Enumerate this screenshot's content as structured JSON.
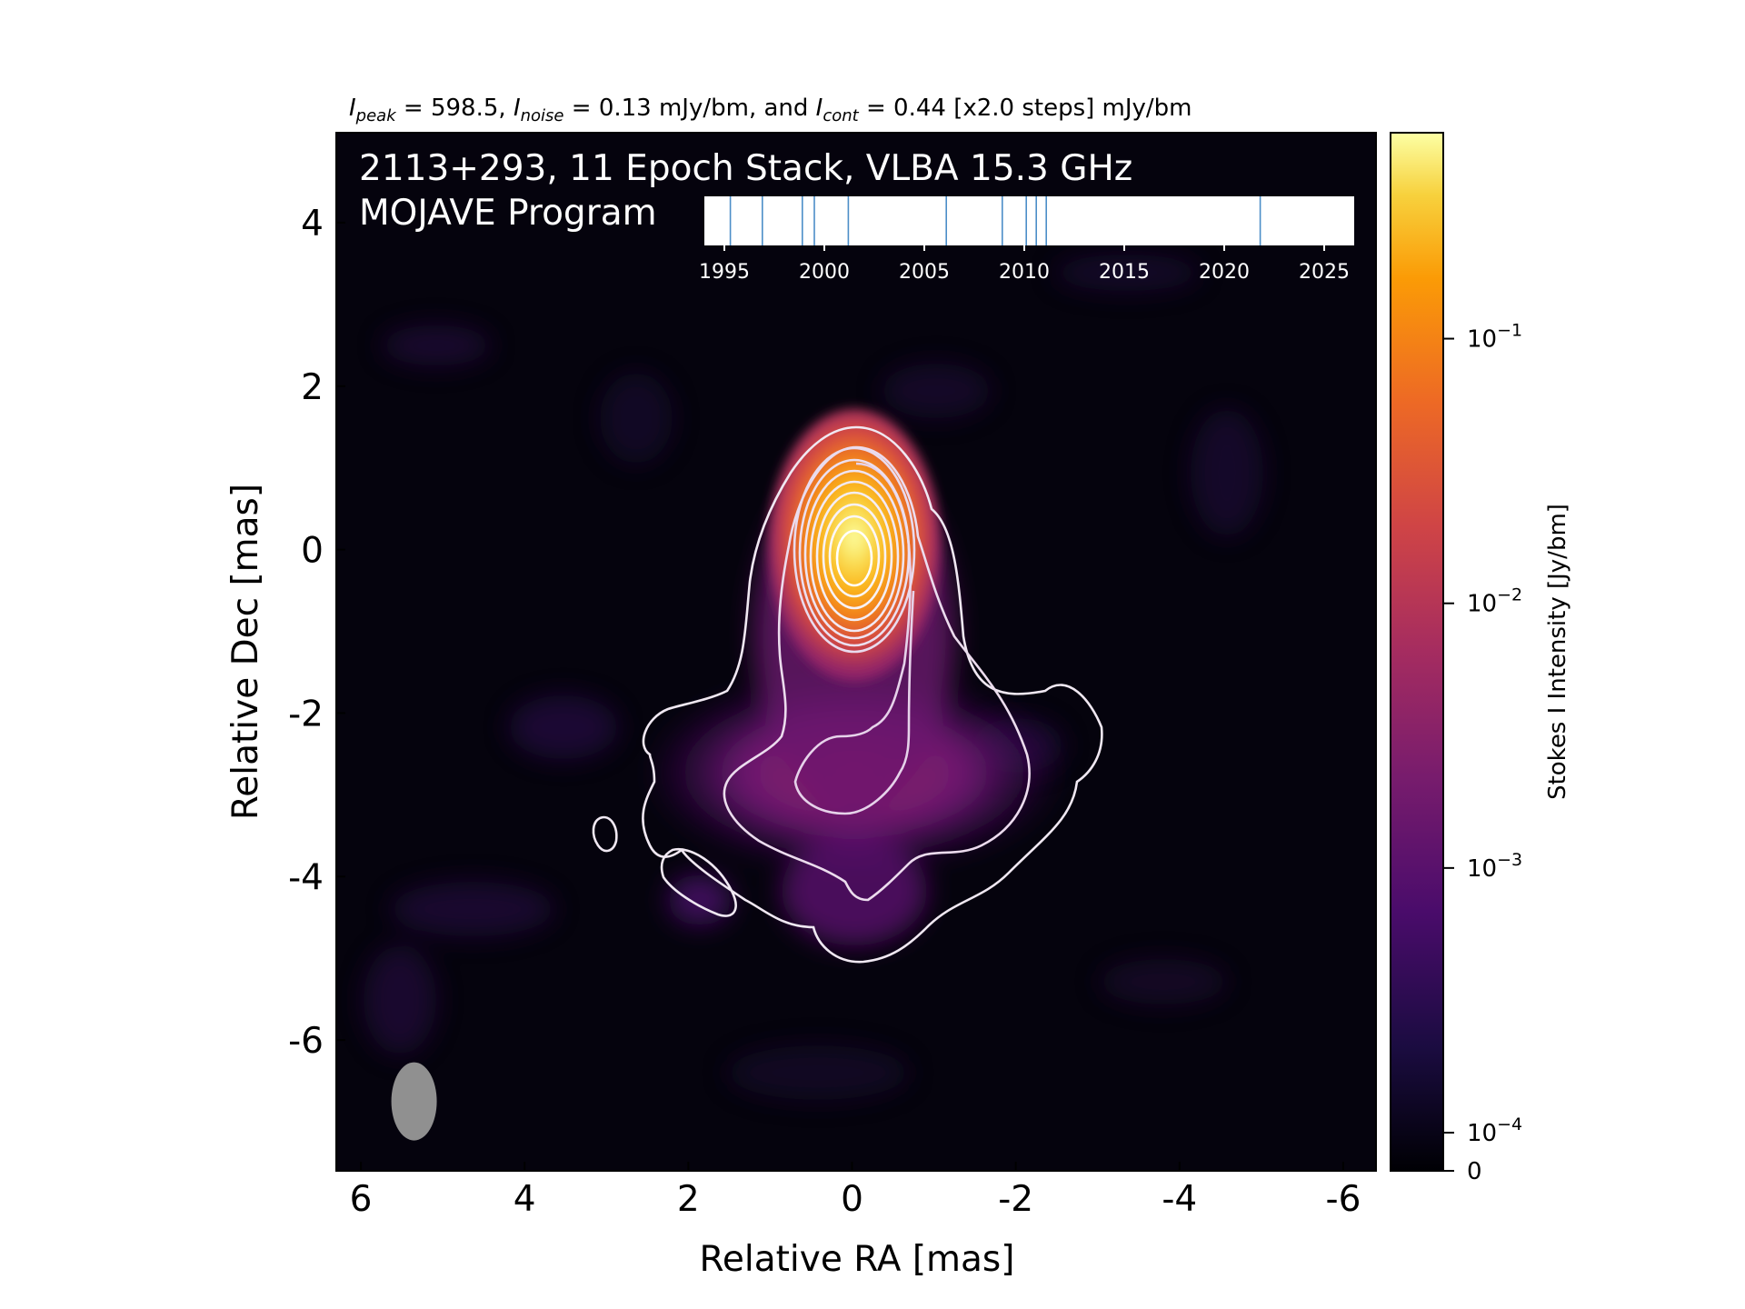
{
  "header": {
    "peak_value": "598.5",
    "noise_value": "0.13 mJy/bm",
    "cont_value": "0.44 [x2.0 steps] mJy/bm"
  },
  "panel": {
    "title_line1": "2113+293, 11 Epoch Stack, VLBA 15.3 GHz",
    "title_line2": "MOJAVE Program"
  },
  "chart_data": [
    {
      "type": "heatmap",
      "xlabel": "Relative RA [mas]",
      "ylabel": "Relative Dec [mas]",
      "xlim": [
        6.3,
        -6.4
      ],
      "ylim": [
        -7.6,
        5.1
      ],
      "xticks": [
        6,
        4,
        2,
        0,
        -2,
        -4,
        -6
      ],
      "yticks": [
        4,
        2,
        0,
        -2,
        -4,
        -6
      ],
      "colormap": "inferno",
      "colorbar": {
        "label": "Stokes I Intensity [Jy/bm]",
        "scale": "log",
        "ticks": [
          {
            "value": 0.1,
            "label": "10^-1"
          },
          {
            "value": 0.01,
            "label": "10^-2"
          },
          {
            "value": 0.001,
            "label": "10^-3"
          },
          {
            "value": 0.0001,
            "label": "10^-4"
          },
          {
            "value": 0,
            "label": "0"
          }
        ]
      },
      "core_position_mas": [
        0,
        0
      ],
      "beam_position_mas": [
        5.35,
        -6.75
      ]
    },
    {
      "type": "scatter",
      "xticks": [
        1995,
        2000,
        2005,
        2010,
        2015,
        2020,
        2025
      ],
      "xlim": [
        1994,
        2026.5
      ],
      "epochs": [
        1995.3,
        1996.9,
        1998.9,
        1999.5,
        2001.2,
        2006.1,
        2008.9,
        2010.1,
        2010.6,
        2011.1,
        2021.8
      ]
    }
  ],
  "colors": {
    "contour": "#f0e8f2",
    "epoch_line": "#4c8ec8",
    "beam": "#909090"
  }
}
